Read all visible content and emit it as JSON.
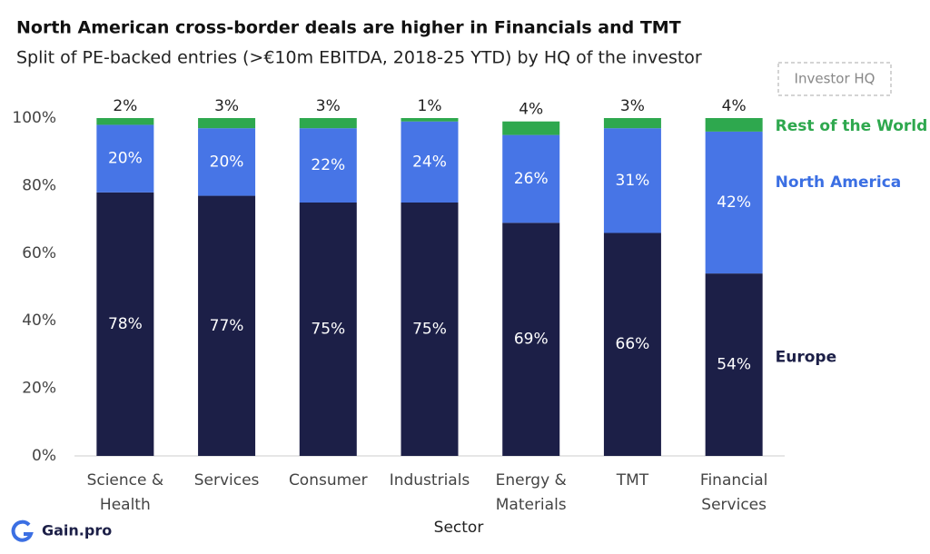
{
  "chart_data": {
    "type": "stacked_bar",
    "title": "North American cross-border deals are higher in Financials and TMT",
    "subtitle": "Split of PE-backed entries (>€10m EBITDA, 2018-25 YTD) by HQ of the investor",
    "legend_title": "Investor HQ",
    "x_label": "Sector",
    "categories": [
      "Science & Health",
      "Services",
      "Consumer",
      "Industrials",
      "Energy & Materials",
      "TMT",
      "Financial Services"
    ],
    "series": [
      {
        "name": "Europe",
        "color": "#1c1f47",
        "label_color": "#1c1f47",
        "values": [
          78,
          77,
          75,
          75,
          69,
          66,
          54
        ],
        "value_labels": [
          "78%",
          "77%",
          "75%",
          "75%",
          "69%",
          "66%",
          "54%"
        ]
      },
      {
        "name": "North America",
        "color": "#4775e6",
        "label_color": "#3b6fe3",
        "values": [
          20,
          20,
          22,
          24,
          26,
          31,
          42
        ],
        "value_labels": [
          "20%",
          "20%",
          "22%",
          "24%",
          "26%",
          "31%",
          "42%"
        ]
      },
      {
        "name": "Rest of the World",
        "color": "#2ea84e",
        "label_color": "#2ea84e",
        "values": [
          2,
          3,
          3,
          1,
          4,
          3,
          4
        ],
        "value_labels": [
          "2%",
          "3%",
          "3%",
          "1%",
          "4%",
          "3%",
          "4%"
        ]
      }
    ],
    "ylim": [
      0,
      100
    ],
    "yticks": [
      {
        "value": 0,
        "label": "0%"
      },
      {
        "value": 20,
        "label": "20%"
      },
      {
        "value": 40,
        "label": "40%"
      },
      {
        "value": 60,
        "label": "60%"
      },
      {
        "value": 80,
        "label": "80%"
      },
      {
        "value": 100,
        "label": "100%"
      }
    ]
  },
  "branding": "Gain.pro"
}
